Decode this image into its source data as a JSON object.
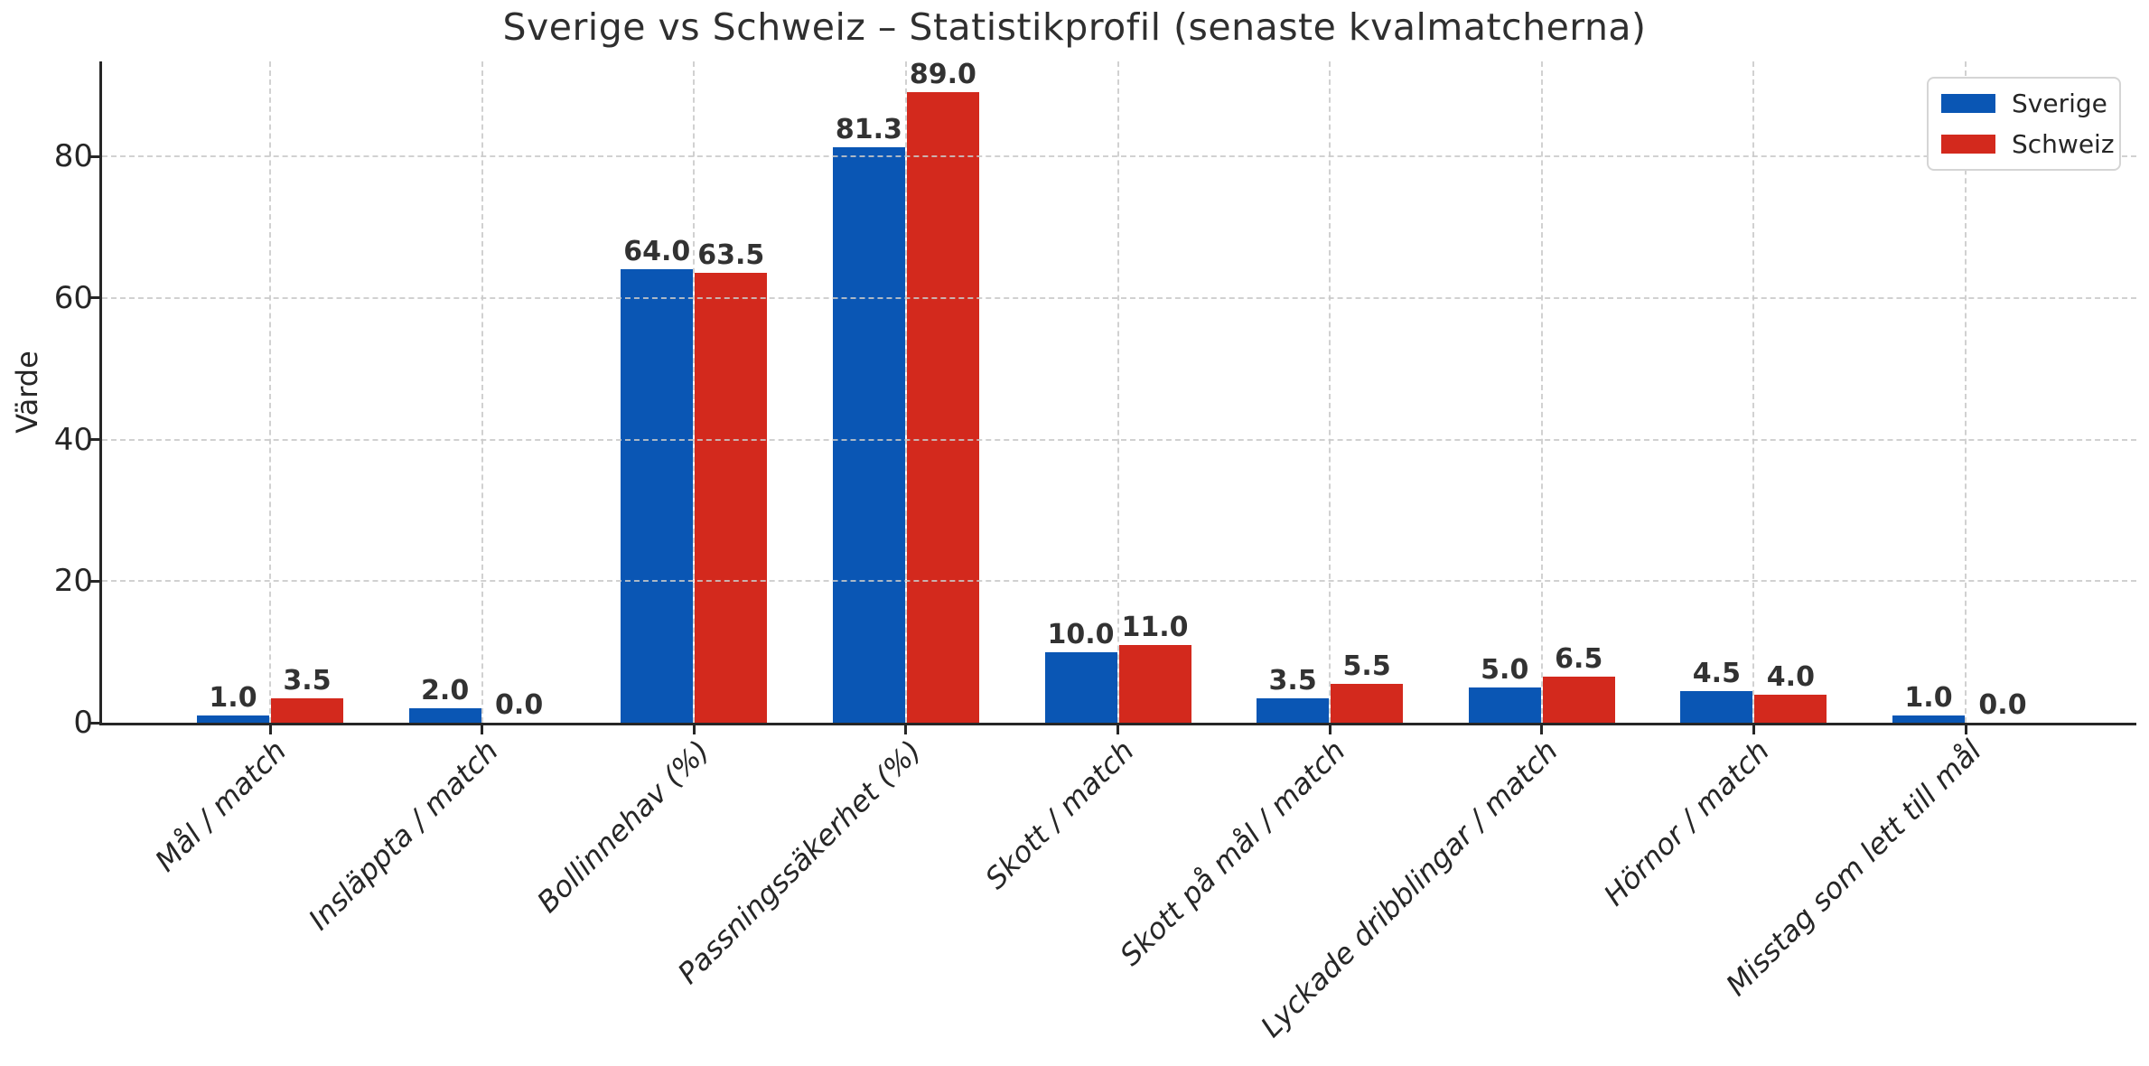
{
  "chart_data": {
    "type": "bar",
    "title": "Sverige vs Schweiz – Statistikprofil (senaste kvalmatcherna)",
    "ylabel": "Värde",
    "xlabel": "",
    "categories": [
      "Mål / match",
      "Insläppta / match",
      "Bollinnehav (%)",
      "Passningssäkerhet (%)",
      "Skott / match",
      "Skott på mål / match",
      "Lyckade dribblingar / match",
      "Hörnor / match",
      "Misstag som lett till mål"
    ],
    "series": [
      {
        "name": "Sverige",
        "color": "#0a56b4",
        "values": [
          1.0,
          2.0,
          64.0,
          81.3,
          10.0,
          3.5,
          5.0,
          4.5,
          1.0
        ]
      },
      {
        "name": "Schweiz",
        "color": "#d3291d",
        "values": [
          3.5,
          0.0,
          63.5,
          89.0,
          11.0,
          5.5,
          6.5,
          4.0,
          0.0
        ]
      }
    ],
    "yticks": [
      0,
      20,
      40,
      60,
      80
    ],
    "ylim": [
      0,
      93.4
    ],
    "value_label_decimals": 1,
    "grid": {
      "style": "dashed",
      "horizontal": true,
      "vertical": true,
      "over_bars": true
    },
    "legend": {
      "position": "top-right",
      "frame": true
    }
  }
}
